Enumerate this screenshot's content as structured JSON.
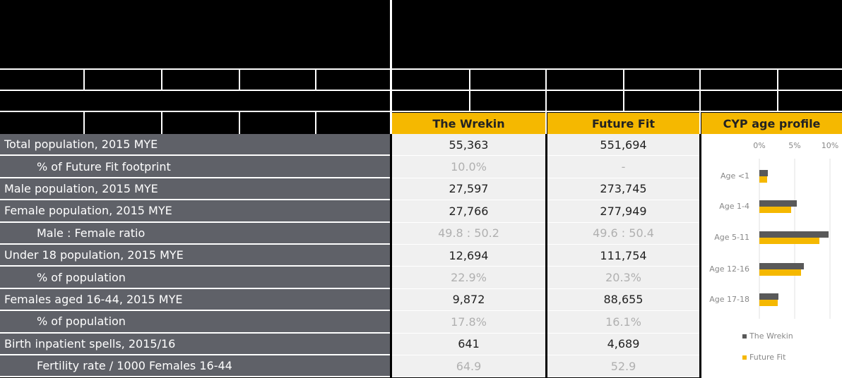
{
  "table": {
    "columns": [
      "The Wrekin",
      "Future Fit",
      "CYP age profile"
    ],
    "rows": [
      {
        "label": "Total population, 2015 MYE",
        "values": [
          "55,363",
          "551,694"
        ],
        "indent": false
      },
      {
        "label": "% of Future Fit footprint",
        "values": [
          "10.0%",
          "-"
        ],
        "indent": true
      },
      {
        "label": "Male population, 2015 MYE",
        "values": [
          "27,597",
          "273,745"
        ],
        "indent": false
      },
      {
        "label": "Female population, 2015 MYE",
        "values": [
          "27,766",
          "277,949"
        ],
        "indent": false
      },
      {
        "label": "Male : Female ratio",
        "values": [
          "49.8 : 50.2",
          "49.6 : 50.4"
        ],
        "indent": true
      },
      {
        "label": "Under 18 population, 2015 MYE",
        "values": [
          "12,694",
          "111,754"
        ],
        "indent": false
      },
      {
        "label": "% of population",
        "values": [
          "22.9%",
          "20.3%"
        ],
        "indent": true
      },
      {
        "label": "Females aged 16-44, 2015 MYE",
        "values": [
          "9,872",
          "88,655"
        ],
        "indent": false
      },
      {
        "label": "% of population",
        "values": [
          "17.8%",
          "16.1%"
        ],
        "indent": true
      },
      {
        "label": "Birth inpatient spells, 2015/16",
        "values": [
          "641",
          "4,689"
        ],
        "indent": false
      },
      {
        "label": "Fertility rate / 1000 Females 16-44",
        "values": [
          "64.9",
          "52.9"
        ],
        "indent": true
      }
    ]
  },
  "chart": {
    "type": "bar",
    "categories": [
      "Age <1",
      "Age 1-4",
      "Age 5-11",
      "Age 12-16",
      "Age 17-18"
    ],
    "series": [
      {
        "name": "The Wrekin",
        "color": "#595959",
        "values": [
          1.2,
          5.3,
          9.8,
          6.3,
          2.7
        ]
      },
      {
        "name": "Future Fit",
        "color": "#f5b800",
        "values": [
          1.1,
          4.5,
          8.5,
          5.9,
          2.6
        ]
      }
    ],
    "xlim": [
      0,
      10
    ],
    "xticks": [
      {
        "value": 0,
        "label": "0%"
      },
      {
        "value": 5,
        "label": "5%"
      },
      {
        "value": 10,
        "label": "10%"
      }
    ],
    "grid": true
  }
}
